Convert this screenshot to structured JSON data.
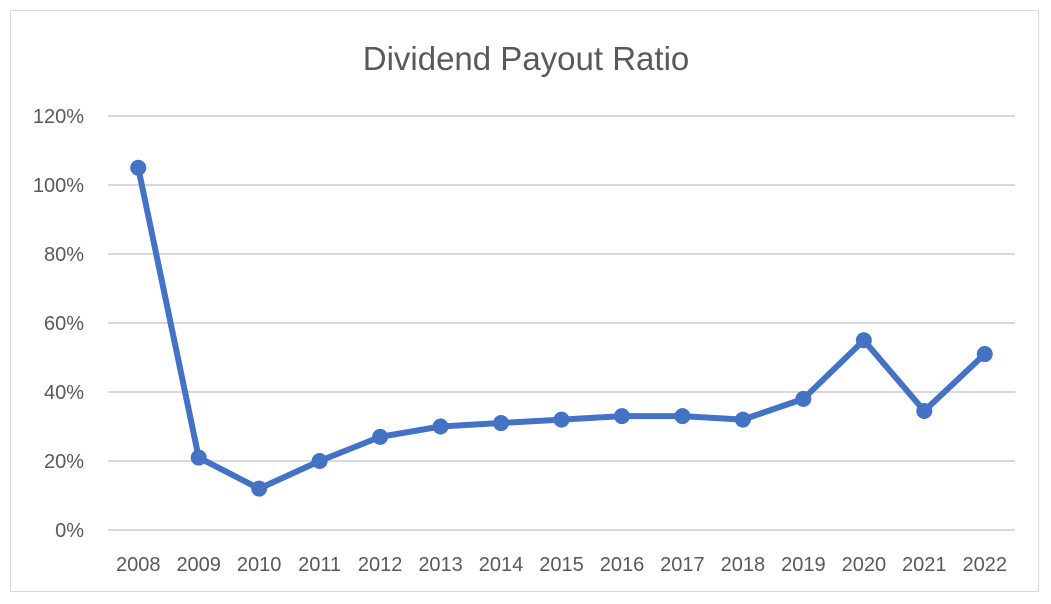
{
  "chart_data": {
    "type": "line",
    "title": "Dividend Payout Ratio",
    "xlabel": "",
    "ylabel": "",
    "x": [
      "2008",
      "2009",
      "2010",
      "2011",
      "2012",
      "2013",
      "2014",
      "2015",
      "2016",
      "2017",
      "2018",
      "2019",
      "2020",
      "2021",
      "2022"
    ],
    "series": [
      {
        "values": [
          105,
          21,
          12,
          20,
          27,
          30,
          31,
          32,
          33,
          33,
          32,
          38,
          55,
          34.5,
          51
        ],
        "color": "#4472c4"
      }
    ],
    "ylim": [
      0,
      120
    ],
    "yticks": [
      "0%",
      "20%",
      "40%",
      "60%",
      "80%",
      "100%",
      "120%"
    ],
    "grid": true,
    "legend": "none"
  }
}
